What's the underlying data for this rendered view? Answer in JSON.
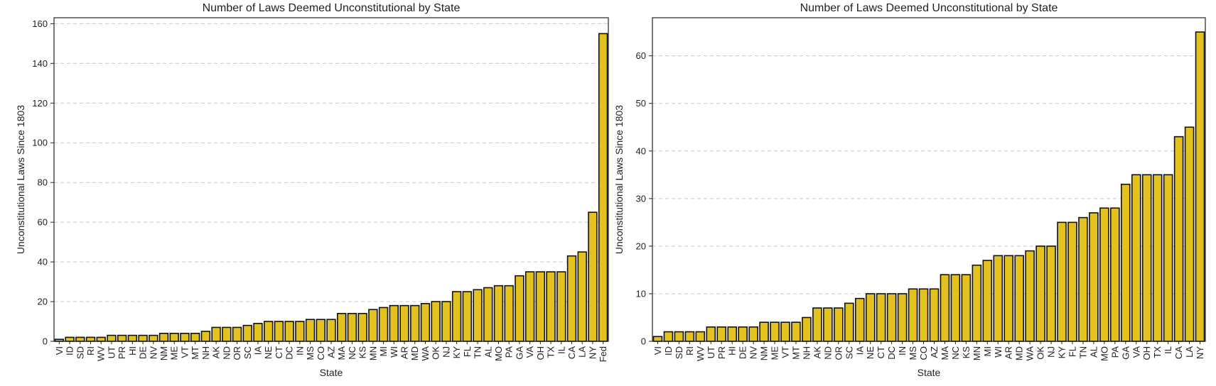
{
  "colors": {
    "bar_fill": "#E3C21F",
    "bar_edge": "#111111",
    "grid": "#c8c8c8"
  },
  "chart_data": [
    {
      "type": "bar",
      "title": "Number of Laws Deemed Unconstitutional by State",
      "xlabel": "State",
      "ylabel": "Unconstitutional Laws Since 1803",
      "ylim": [
        0,
        163
      ],
      "yticks": [
        0,
        20,
        40,
        60,
        80,
        100,
        120,
        140,
        160
      ],
      "grid": "y-dashed",
      "categories": [
        "VI",
        "ID",
        "SD",
        "RI",
        "WV",
        "UT",
        "PR",
        "HI",
        "DE",
        "NV",
        "NM",
        "ME",
        "VT",
        "MT",
        "NH",
        "AK",
        "ND",
        "OR",
        "SC",
        "IA",
        "NE",
        "CT",
        "DC",
        "IN",
        "MS",
        "CO",
        "AZ",
        "MA",
        "NC",
        "KS",
        "MN",
        "MI",
        "WI",
        "AR",
        "MD",
        "WA",
        "OK",
        "NJ",
        "KY",
        "FL",
        "TN",
        "AL",
        "MO",
        "PA",
        "GA",
        "VA",
        "OH",
        "TX",
        "IL",
        "CA",
        "LA",
        "NY",
        "Fed"
      ],
      "values": [
        1,
        2,
        2,
        2,
        2,
        3,
        3,
        3,
        3,
        3,
        4,
        4,
        4,
        4,
        5,
        7,
        7,
        7,
        8,
        9,
        10,
        10,
        10,
        10,
        11,
        11,
        11,
        14,
        14,
        14,
        16,
        17,
        18,
        18,
        18,
        19,
        20,
        20,
        25,
        25,
        26,
        27,
        28,
        28,
        33,
        35,
        35,
        35,
        35,
        43,
        45,
        65,
        155
      ]
    },
    {
      "type": "bar",
      "title": "Number of Laws Deemed Unconstitutional by State",
      "xlabel": "State",
      "ylabel": "Unconstitutional Laws Since 1803",
      "ylim": [
        0,
        68
      ],
      "yticks": [
        0,
        10,
        20,
        30,
        40,
        50,
        60
      ],
      "grid": "y-dashed",
      "categories": [
        "VI",
        "ID",
        "SD",
        "RI",
        "WV",
        "UT",
        "PR",
        "HI",
        "DE",
        "NV",
        "NM",
        "ME",
        "VT",
        "MT",
        "NH",
        "AK",
        "ND",
        "OR",
        "SC",
        "IA",
        "NE",
        "CT",
        "DC",
        "IN",
        "MS",
        "CO",
        "AZ",
        "MA",
        "NC",
        "KS",
        "MN",
        "MI",
        "WI",
        "AR",
        "MD",
        "WA",
        "OK",
        "NJ",
        "KY",
        "FL",
        "TN",
        "AL",
        "MO",
        "PA",
        "GA",
        "VA",
        "OH",
        "TX",
        "IL",
        "CA",
        "LA",
        "NY"
      ],
      "values": [
        1,
        2,
        2,
        2,
        2,
        3,
        3,
        3,
        3,
        3,
        4,
        4,
        4,
        4,
        5,
        7,
        7,
        7,
        8,
        9,
        10,
        10,
        10,
        10,
        11,
        11,
        11,
        14,
        14,
        14,
        16,
        17,
        18,
        18,
        18,
        19,
        20,
        20,
        25,
        25,
        26,
        27,
        28,
        28,
        33,
        35,
        35,
        35,
        35,
        43,
        45,
        65
      ]
    }
  ]
}
